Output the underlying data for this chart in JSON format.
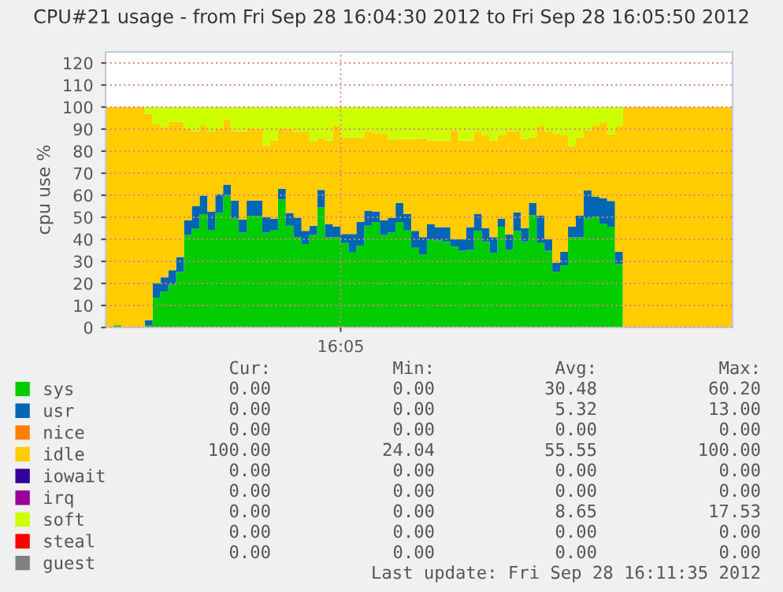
{
  "chart_data": {
    "type": "area",
    "stacked": true,
    "title": "CPU#21 usage - from Fri Sep 28 16:04:30 2012 to Fri Sep 28 16:05:50 2012",
    "ylabel": "cpu use %",
    "categories": [
      null,
      null,
      null,
      null,
      null,
      null,
      null,
      null,
      null,
      null,
      null,
      null,
      null,
      null,
      null,
      null,
      null,
      null,
      null,
      null,
      null,
      null,
      null,
      null,
      null,
      null,
      null,
      null,
      null,
      null,
      null,
      null,
      null,
      null,
      null,
      null,
      null,
      null,
      null,
      null,
      null,
      null,
      null,
      null,
      null,
      null,
      null,
      null,
      null,
      null,
      null,
      null,
      null,
      null,
      null,
      null,
      null,
      null,
      null,
      null,
      null,
      null,
      null,
      null,
      null,
      null,
      null,
      null,
      null,
      null,
      null,
      null,
      null,
      null,
      null,
      null,
      null,
      null,
      null,
      null
    ],
    "series": [
      {
        "name": "sys",
        "color": "#00cc00",
        "values": [
          0,
          1,
          0,
          0,
          0,
          1,
          13.6,
          16.4,
          19.5,
          25.2,
          42,
          45,
          51.4,
          44.3,
          52,
          59.8,
          49.5,
          43,
          50.7,
          50.7,
          43,
          44.3,
          58.1,
          46.2,
          41,
          37.9,
          42,
          54.5,
          41,
          41,
          38.6,
          34.3,
          37.1,
          46.2,
          47.9,
          42,
          43,
          47.9,
          44.3,
          36.2,
          33.1,
          39.8,
          39.5,
          39,
          36.7,
          34.8,
          35.2,
          43.8,
          39,
          33.8,
          45.7,
          35.2,
          43.8,
          39,
          51,
          38.6,
          34.8,
          25.2,
          28.1,
          41,
          41,
          49.5,
          50.2,
          47.1,
          45.7,
          28.8,
          0,
          0,
          0,
          0,
          0,
          0,
          0,
          0,
          0,
          0,
          0,
          0,
          0,
          0
        ]
      },
      {
        "name": "usr",
        "color": "#0066b3",
        "values": [
          0,
          0,
          0,
          0,
          0,
          2.3,
          6.4,
          6.4,
          6.5,
          6.8,
          6.6,
          10,
          8.4,
          8.3,
          8.5,
          5,
          8.1,
          6,
          6.9,
          6.9,
          7.2,
          5,
          4.8,
          5.8,
          8.8,
          5.9,
          4.2,
          7.9,
          6,
          4.7,
          3.8,
          8.1,
          10.8,
          6.7,
          4.7,
          6.6,
          6.8,
          8.5,
          7.1,
          7.6,
          7.9,
          7.2,
          6,
          6.5,
          3.3,
          5.2,
          10.3,
          7.6,
          6,
          7.2,
          3.6,
          6.9,
          8.3,
          6,
          5.4,
          12.1,
          5.2,
          4.3,
          6.2,
          4.7,
          9.7,
          12.6,
          9.1,
          11.5,
          11.7,
          5.5,
          0,
          0,
          0,
          0,
          0,
          0,
          0,
          0,
          0,
          0,
          0,
          0,
          0,
          0
        ]
      },
      {
        "name": "nice",
        "color": "#ff8000",
        "values": [
          null,
          null,
          null,
          null,
          null,
          null,
          null,
          null,
          null,
          null,
          null,
          null,
          null,
          null,
          null,
          null,
          null,
          null,
          null,
          null,
          null,
          null,
          null,
          null,
          null,
          null,
          null,
          null,
          null,
          null,
          null,
          null,
          null,
          null,
          null,
          null,
          null,
          null,
          null,
          null,
          null,
          null,
          null,
          null,
          null,
          null,
          null,
          null,
          null,
          null,
          null,
          null,
          null,
          null,
          null,
          null,
          null,
          null,
          null,
          null,
          null,
          null,
          null,
          null,
          null,
          null,
          null,
          null,
          null,
          null,
          null,
          null,
          null,
          null,
          null,
          null,
          null,
          null,
          null,
          null
        ]
      },
      {
        "name": "idle",
        "color": "#ffcc00",
        "values": [
          100,
          99,
          100,
          100,
          100,
          93.6,
          72.1,
          68.2,
          67.3,
          61.3,
          41.6,
          34,
          31.6,
          36,
          29.7,
          29.5,
          31.4,
          40,
          32.6,
          32.6,
          32.4,
          35.5,
          27.3,
          38.2,
          38.8,
          44.8,
          38.1,
          23.5,
          37.8,
          45.7,
          43.8,
          43.8,
          38.3,
          36.1,
          35.3,
          39.3,
          35.2,
          29.1,
          34.1,
          41.7,
          44.9,
          37.8,
          39.3,
          39.3,
          49.5,
          44.8,
          39.3,
          37.2,
          42.1,
          43.8,
          37.8,
          46.9,
          36.9,
          40.5,
          29.8,
          40.7,
          49,
          58.4,
          52.8,
          36.7,
          35.5,
          27.4,
          32.1,
          34.5,
          30.2,
          57.1,
          100,
          100,
          100,
          100,
          100,
          100,
          100,
          100,
          100,
          100,
          100,
          100,
          100,
          100
        ]
      },
      {
        "name": "iowait",
        "color": "#330099",
        "values": [
          null,
          null,
          null,
          null,
          null,
          null,
          null,
          null,
          null,
          null,
          null,
          null,
          null,
          null,
          null,
          null,
          null,
          null,
          null,
          null,
          null,
          null,
          null,
          null,
          null,
          null,
          null,
          null,
          null,
          null,
          null,
          null,
          null,
          null,
          null,
          null,
          null,
          null,
          null,
          null,
          null,
          null,
          null,
          null,
          null,
          null,
          null,
          null,
          null,
          null,
          null,
          null,
          null,
          null,
          null,
          null,
          null,
          null,
          null,
          null,
          null,
          null,
          null,
          null,
          null,
          null,
          null,
          null,
          null,
          null,
          null,
          null,
          null,
          null,
          null,
          null,
          null,
          null,
          null,
          null
        ]
      },
      {
        "name": "irq",
        "color": "#990099",
        "values": [
          null,
          null,
          null,
          null,
          null,
          null,
          null,
          null,
          null,
          null,
          null,
          null,
          null,
          null,
          null,
          null,
          null,
          null,
          null,
          null,
          null,
          null,
          null,
          null,
          null,
          null,
          null,
          null,
          null,
          null,
          null,
          null,
          null,
          null,
          null,
          null,
          null,
          null,
          null,
          null,
          null,
          null,
          null,
          null,
          null,
          null,
          null,
          null,
          null,
          null,
          null,
          null,
          null,
          null,
          null,
          null,
          null,
          null,
          null,
          null,
          null,
          null,
          null,
          null,
          null,
          null,
          null,
          null,
          null,
          null,
          null,
          null,
          null,
          null,
          null,
          null,
          null,
          null,
          null,
          null
        ]
      },
      {
        "name": "soft",
        "color": "#ccff00",
        "values": [
          0,
          0,
          0,
          0,
          0,
          3.1,
          7.9,
          9,
          6.7,
          6.7,
          9.8,
          11,
          8.6,
          11.4,
          9.8,
          5.7,
          11,
          11,
          9.8,
          9.8,
          17.4,
          15.2,
          9.8,
          9.8,
          11.4,
          11.4,
          15.7,
          14.1,
          15.2,
          8.6,
          13.8,
          13.8,
          13.8,
          11,
          12.1,
          12.1,
          15,
          14.5,
          14.5,
          14.5,
          14.1,
          15.2,
          15.2,
          15.2,
          10.5,
          15.2,
          15.2,
          11.4,
          12.9,
          15.2,
          12.9,
          11,
          11,
          14.5,
          13.8,
          8.6,
          11,
          12.1,
          12.9,
          17.6,
          13.8,
          10.5,
          8.6,
          6.9,
          12.4,
          8.6,
          0,
          0,
          0,
          0,
          0,
          0,
          0,
          0,
          0,
          0,
          0,
          0,
          0,
          0
        ]
      },
      {
        "name": "steal",
        "color": "#ff0000",
        "values": [
          null,
          null,
          null,
          null,
          null,
          null,
          null,
          null,
          null,
          null,
          null,
          null,
          null,
          null,
          null,
          null,
          null,
          null,
          null,
          null,
          null,
          null,
          null,
          null,
          null,
          null,
          null,
          null,
          null,
          null,
          null,
          null,
          null,
          null,
          null,
          null,
          null,
          null,
          null,
          null,
          null,
          null,
          null,
          null,
          null,
          null,
          null,
          null,
          null,
          null,
          null,
          null,
          null,
          null,
          null,
          null,
          null,
          null,
          null,
          null,
          null,
          null,
          null,
          null,
          null,
          null,
          null,
          null,
          null,
          null,
          null,
          null,
          null,
          null,
          null,
          null,
          null,
          null,
          null,
          null
        ]
      },
      {
        "name": "guest",
        "color": "#808080",
        "values": [
          null,
          null,
          null,
          null,
          null,
          null,
          null,
          null,
          null,
          null,
          null,
          null,
          null,
          null,
          null,
          null,
          null,
          null,
          null,
          null,
          null,
          null,
          null,
          null,
          null,
          null,
          null,
          null,
          null,
          null,
          null,
          null,
          null,
          null,
          null,
          null,
          null,
          null,
          null,
          null,
          null,
          null,
          null,
          null,
          null,
          null,
          null,
          null,
          null,
          null,
          null,
          null,
          null,
          null,
          null,
          null,
          null,
          null,
          null,
          null,
          null,
          null,
          null,
          null,
          null,
          null,
          null,
          null,
          null,
          null,
          null,
          null,
          null,
          null,
          null,
          null,
          null,
          null,
          null,
          null
        ]
      }
    ],
    "ylim": [
      0,
      125
    ],
    "yticks": [
      0,
      10,
      20,
      30,
      40,
      50,
      60,
      70,
      80,
      90,
      100,
      110,
      120
    ],
    "grid": true,
    "legend": "bottom",
    "annotations": [
      "16:05",
      "Cur:",
      "Min:",
      "Avg:",
      "Max:",
      "0.00",
      "0.00",
      "30.48",
      "60.20",
      "0.00",
      "0.00",
      "5.32",
      "13.00",
      "0.00",
      "0.00",
      "0.00",
      "0.00",
      "100.00",
      "24.04",
      "55.55",
      "100.00",
      "0.00",
      "0.00",
      "0.00",
      "0.00",
      "0.00",
      "0.00",
      "0.00",
      "0.00",
      "0.00",
      "0.00",
      "8.65",
      "17.53",
      "0.00",
      "0.00",
      "0.00",
      "0.00",
      "0.00",
      "0.00",
      "0.00",
      "0.00",
      "Last update: Fri Sep 28 16:11:35 2012"
    ]
  }
}
